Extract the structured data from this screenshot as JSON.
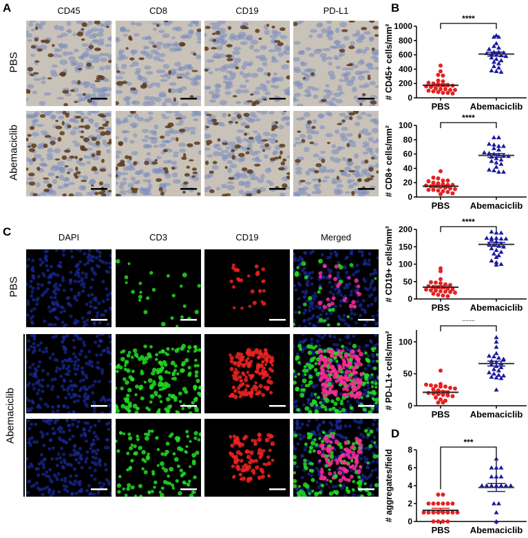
{
  "panel_a": {
    "label": "A",
    "columns": [
      "CD45",
      "CD8",
      "CD19",
      "PD-L1"
    ],
    "rows": [
      "PBS",
      "Abemaciclib"
    ],
    "image_type": "immunohistochemistry",
    "colors": {
      "background": "#c9c2b8",
      "nuclei": "#7f8fc0",
      "stain": "#5a3a1c"
    }
  },
  "panel_c": {
    "label": "C",
    "columns": [
      "DAPI",
      "CD3",
      "CD19",
      "Merged"
    ],
    "rows": [
      "PBS",
      "Abemaciclib"
    ],
    "image_type": "immunofluorescence",
    "colors": {
      "DAPI": "#1a2a9a",
      "CD3": "#22dd22",
      "CD19": "#ee2222"
    }
  },
  "panel_b_label": "B",
  "panel_d_label": "D",
  "colors": {
    "PBS": "#e32222",
    "Abemaciclib": "#1a1a9e",
    "axis": "#000000"
  },
  "chart_data": [
    {
      "panel": "B",
      "type": "scatter",
      "ylabel": "# CD45+ cells/mm²",
      "ylim": [
        0,
        1000
      ],
      "yticks": [
        "0",
        "200",
        "400",
        "600",
        "800",
        "1000"
      ],
      "ytick_values": [
        0,
        200,
        400,
        600,
        800,
        1000
      ],
      "categories": [
        "PBS",
        "Abemaciclib"
      ],
      "significance": "****",
      "series": [
        {
          "name": "PBS",
          "marker": "circle",
          "mean": 175,
          "sem": 20,
          "values": [
            450,
            370,
            320,
            310,
            240,
            230,
            210,
            200,
            190,
            180,
            180,
            170,
            160,
            150,
            130,
            120,
            120,
            110,
            110,
            100,
            90,
            80,
            70,
            70,
            60
          ]
        },
        {
          "name": "Abemaciclib",
          "marker": "triangle",
          "mean": 610,
          "sem": 28,
          "values": [
            870,
            850,
            850,
            760,
            720,
            700,
            680,
            640,
            640,
            630,
            620,
            610,
            600,
            590,
            580,
            560,
            540,
            520,
            500,
            480,
            440,
            420,
            380,
            370,
            360
          ]
        }
      ]
    },
    {
      "panel": "B",
      "type": "scatter",
      "ylabel": "# CD8+ cells/mm²",
      "ylim": [
        0,
        100
      ],
      "yticks": [
        "0",
        "20",
        "40",
        "60",
        "80",
        "100"
      ],
      "ytick_values": [
        0,
        20,
        40,
        60,
        80,
        100
      ],
      "categories": [
        "PBS",
        "Abemaciclib"
      ],
      "significance": "****",
      "series": [
        {
          "name": "PBS",
          "marker": "circle",
          "mean": 15,
          "sem": 1.6,
          "values": [
            36,
            27,
            26,
            23,
            23,
            22,
            20,
            19,
            18,
            17,
            17,
            16,
            15,
            15,
            14,
            13,
            12,
            11,
            10,
            10,
            9,
            8,
            7,
            5,
            4
          ]
        },
        {
          "name": "Abemaciclib",
          "marker": "triangle",
          "mean": 58,
          "sem": 2.6,
          "values": [
            83,
            83,
            74,
            73,
            71,
            71,
            68,
            66,
            62,
            61,
            60,
            59,
            58,
            57,
            56,
            54,
            52,
            50,
            48,
            46,
            42,
            38,
            37,
            35,
            35
          ]
        }
      ]
    },
    {
      "panel": "B",
      "type": "scatter",
      "ylabel": "# CD19+ cells/mm²",
      "ylim": [
        0,
        200
      ],
      "yticks": [
        "0",
        "50",
        "100",
        "150",
        "200"
      ],
      "ytick_values": [
        0,
        50,
        100,
        150,
        200
      ],
      "categories": [
        "PBS",
        "Abemaciclib"
      ],
      "significance": "****",
      "series": [
        {
          "name": "PBS",
          "marker": "circle",
          "mean": 34,
          "sem": 4,
          "values": [
            88,
            80,
            57,
            48,
            47,
            45,
            42,
            40,
            37,
            35,
            34,
            33,
            30,
            28,
            27,
            25,
            24,
            22,
            21,
            20,
            18,
            15,
            12,
            10,
            8
          ]
        },
        {
          "name": "Abemaciclib",
          "marker": "triangle",
          "mean": 157,
          "sem": 5.5,
          "values": [
            193,
            190,
            190,
            175,
            175,
            175,
            173,
            173,
            170,
            165,
            160,
            158,
            155,
            152,
            150,
            145,
            140,
            135,
            130,
            125,
            120,
            110,
            105,
            100,
            98
          ]
        }
      ]
    },
    {
      "panel": "B",
      "type": "scatter",
      "ylabel": "# PD-L1+ cells/mm²",
      "ylim": [
        0,
        110
      ],
      "yticks": [
        "0",
        "50",
        "100"
      ],
      "ytick_values": [
        0,
        50,
        100
      ],
      "categories": [
        "PBS",
        "Abemaciclib"
      ],
      "significance": "****",
      "series": [
        {
          "name": "PBS",
          "marker": "circle",
          "mean": 21,
          "sem": 2.2,
          "values": [
            55,
            34,
            33,
            32,
            31,
            30,
            30,
            28,
            27,
            26,
            24,
            22,
            21,
            20,
            19,
            18,
            17,
            16,
            15,
            13,
            10,
            8,
            5,
            5
          ]
        },
        {
          "name": "Abemaciclib",
          "marker": "triangle",
          "mean": 66,
          "sem": 3.8,
          "values": [
            107,
            100,
            92,
            82,
            78,
            77,
            75,
            73,
            70,
            68,
            66,
            64,
            62,
            60,
            57,
            55,
            52,
            50,
            48,
            47,
            45,
            44,
            43,
            25
          ]
        }
      ]
    },
    {
      "panel": "D",
      "type": "scatter",
      "ylabel": "# aggregates/field",
      "ylim": [
        0,
        8
      ],
      "yticks": [
        "0",
        "2",
        "4",
        "6",
        "8"
      ],
      "ytick_values": [
        0,
        2,
        4,
        6,
        8
      ],
      "categories": [
        "PBS",
        "Abemaciclib"
      ],
      "significance": "***",
      "series": [
        {
          "name": "PBS",
          "marker": "circle",
          "mean": 1.25,
          "sem": 0.22,
          "values": [
            3,
            3,
            2,
            2,
            2,
            2,
            2,
            2,
            1,
            1,
            1,
            1,
            1,
            1,
            1,
            1,
            0,
            0,
            0,
            0
          ]
        },
        {
          "name": "Abemaciclib",
          "marker": "triangle",
          "mean": 3.8,
          "sem": 0.45,
          "values": [
            7,
            6,
            6,
            6,
            5,
            5,
            5,
            4,
            4,
            4,
            4,
            4,
            4,
            4,
            2,
            2,
            1,
            0
          ]
        }
      ]
    }
  ]
}
